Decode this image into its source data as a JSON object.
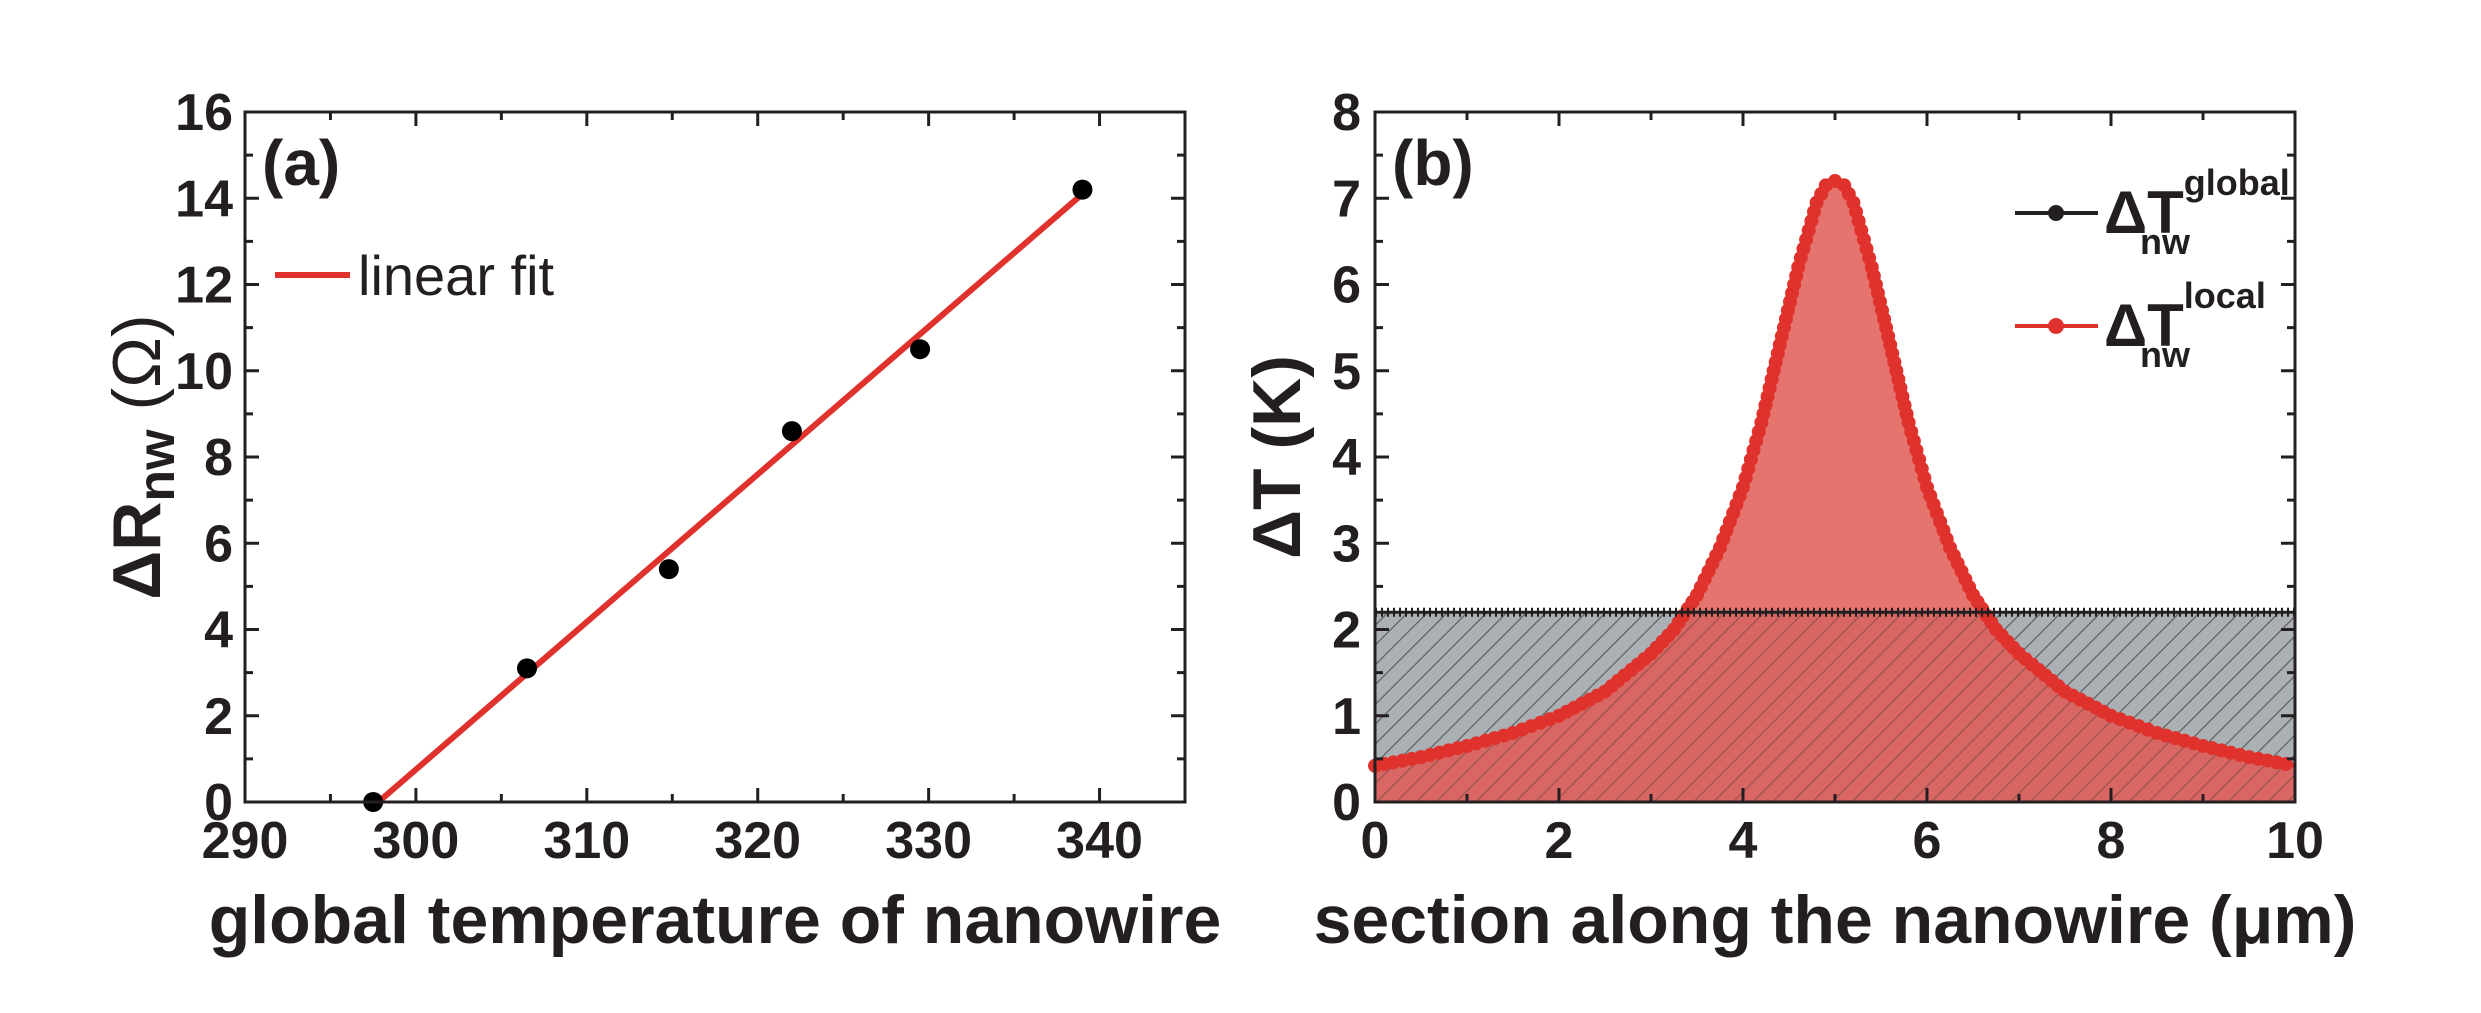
{
  "chart_data": [
    {
      "type": "scatter",
      "panel": "(a)",
      "xlabel": "global temperature of nanowire",
      "ylabel_main": "ΔR",
      "ylabel_sub": "nw",
      "ylabel_unit": " (Ω)",
      "xlim": [
        290,
        345
      ],
      "ylim": [
        0,
        16
      ],
      "xticks": [
        290,
        300,
        310,
        320,
        330,
        340
      ],
      "yticks": [
        0,
        2,
        4,
        6,
        8,
        10,
        12,
        14,
        16
      ],
      "points": [
        {
          "x": 297.5,
          "y": 0.0
        },
        {
          "x": 306.5,
          "y": 3.1
        },
        {
          "x": 314.8,
          "y": 5.4
        },
        {
          "x": 322.0,
          "y": 8.6
        },
        {
          "x": 329.5,
          "y": 10.5
        },
        {
          "x": 339.0,
          "y": 14.2
        }
      ],
      "fit": {
        "label": "linear fit",
        "x": [
          297.8,
          339.0
        ],
        "y": [
          0.0,
          14.1
        ],
        "color": "#e0322d"
      },
      "grid": false
    },
    {
      "type": "area",
      "panel": "(b)",
      "xlabel": "section along the nanowire (μm)",
      "ylabel": "ΔT (K)",
      "xlim": [
        0,
        10
      ],
      "ylim": [
        0,
        8
      ],
      "xticks": [
        0,
        2,
        4,
        6,
        8,
        10
      ],
      "yticks": [
        0,
        1,
        2,
        3,
        4,
        5,
        6,
        7,
        8
      ],
      "series": [
        {
          "name": "global",
          "legend_main": "ΔT",
          "legend_sup": "global",
          "legend_sub": "nw",
          "color": "#231f20",
          "fill": "#8e959b",
          "constant": 2.2
        },
        {
          "name": "local",
          "legend_main": "ΔT",
          "legend_sup": "local",
          "legend_sub": "nw",
          "color": "#e0322d",
          "fill": "#e05a55",
          "peak_x": 5.0,
          "peak_y": 7.2,
          "x": [
            0,
            0.5,
            1,
            1.5,
            2,
            2.5,
            3,
            3.25,
            3.5,
            3.75,
            4,
            4.2,
            4.4,
            4.6,
            4.8,
            4.9,
            5.0,
            5.1,
            5.2,
            5.4,
            5.6,
            5.8,
            6,
            6.25,
            6.5,
            6.75,
            7,
            7.5,
            8,
            8.5,
            9,
            9.5,
            10
          ],
          "y": [
            0.42,
            0.52,
            0.65,
            0.8,
            1.0,
            1.28,
            1.72,
            2.0,
            2.4,
            2.95,
            3.65,
            4.4,
            5.3,
            6.2,
            6.95,
            7.15,
            7.2,
            7.15,
            6.95,
            6.2,
            5.3,
            4.4,
            3.65,
            2.95,
            2.4,
            2.0,
            1.72,
            1.28,
            1.0,
            0.8,
            0.65,
            0.52,
            0.42
          ]
        }
      ],
      "legend_position": "top-right",
      "grid": false
    }
  ]
}
